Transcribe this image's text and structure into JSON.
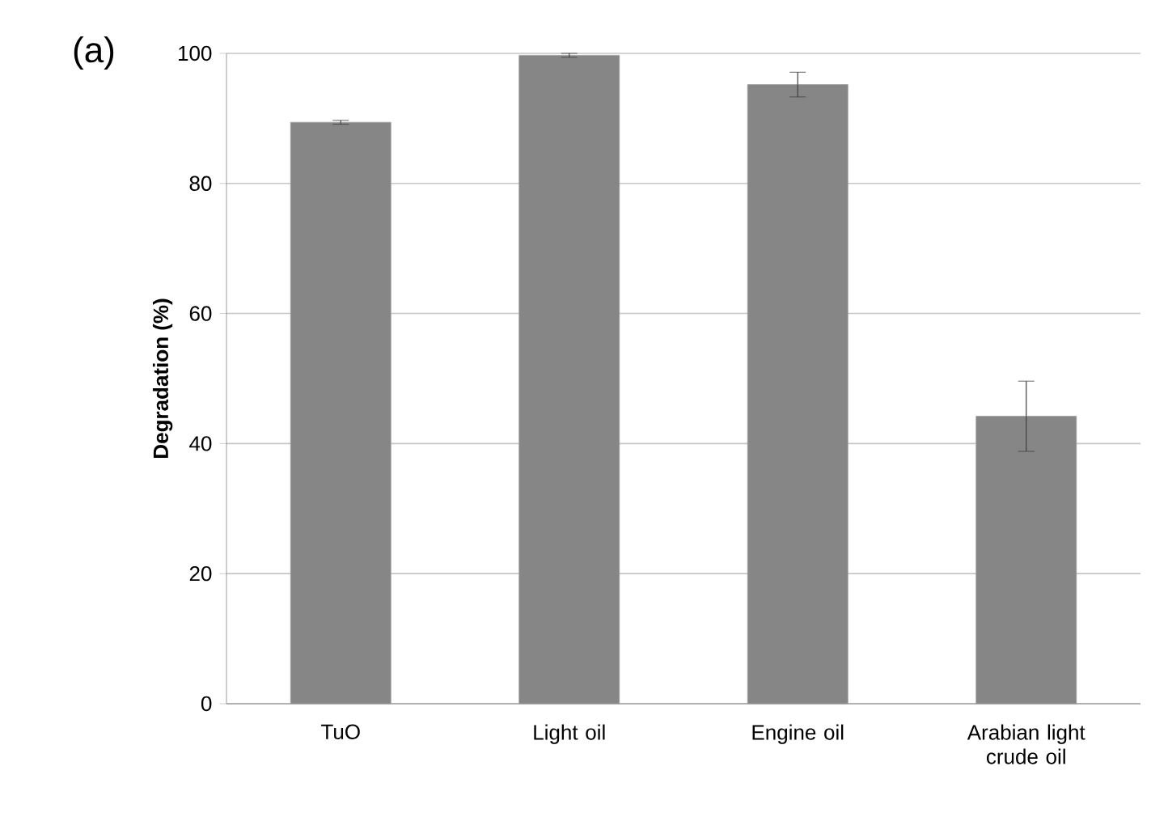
{
  "chart_data": {
    "type": "bar",
    "ylabel": "**Degradation (%)**",
    "categories": [
      "TuO",
      "Light oil",
      "Engine oil",
      "Arabian light crude oil"
    ],
    "values": [
      89.4,
      99.7,
      95.2,
      44.2
    ],
    "errors": [
      0.3,
      0.3,
      1.9,
      5.4
    ],
    "color": "#868686",
    "ylim": [
      0,
      100
    ],
    "yticks": [
      0,
      20,
      40,
      60,
      80,
      100
    ],
    "grid": "y",
    "annotations": [
      "(a)"
    ]
  }
}
